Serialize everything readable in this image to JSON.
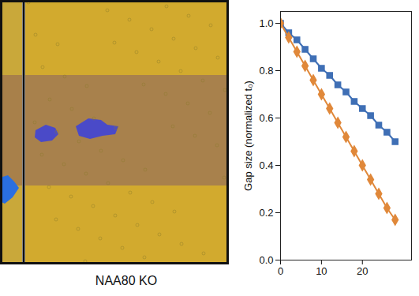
{
  "chart_data": {
    "type": "line",
    "ylabel": "Gap size (normalized t₀)",
    "annotations": [
      "NAA80 KO"
    ],
    "x": [
      0,
      2,
      4,
      6,
      8,
      10,
      12,
      14,
      16,
      18,
      20,
      22,
      24,
      26,
      28
    ],
    "series": [
      {
        "color": "#3f6fb5",
        "marker": "square",
        "values": [
          1.0,
          0.96,
          0.93,
          0.89,
          0.85,
          0.81,
          0.78,
          0.74,
          0.71,
          0.67,
          0.64,
          0.61,
          0.57,
          0.54,
          0.5
        ]
      },
      {
        "color": "#e0883a",
        "marker": "diamond",
        "values": [
          1.0,
          0.94,
          0.88,
          0.82,
          0.76,
          0.7,
          0.64,
          0.58,
          0.52,
          0.46,
          0.4,
          0.34,
          0.28,
          0.22,
          0.17
        ]
      }
    ],
    "xlim": [
      0,
      32
    ],
    "xticks": [
      0,
      10,
      20
    ],
    "ylim": [
      0,
      1.05
    ],
    "yticks": [
      {
        "value": 0,
        "label": "0.0"
      },
      {
        "value": 0.2,
        "label": "0.2"
      },
      {
        "value": 0.4,
        "label": "0.4"
      },
      {
        "value": 0.6,
        "label": "0.6"
      },
      {
        "value": 0.8,
        "label": "0.8"
      },
      {
        "value": 1.0,
        "label": "1.0"
      }
    ],
    "grid": false
  }
}
